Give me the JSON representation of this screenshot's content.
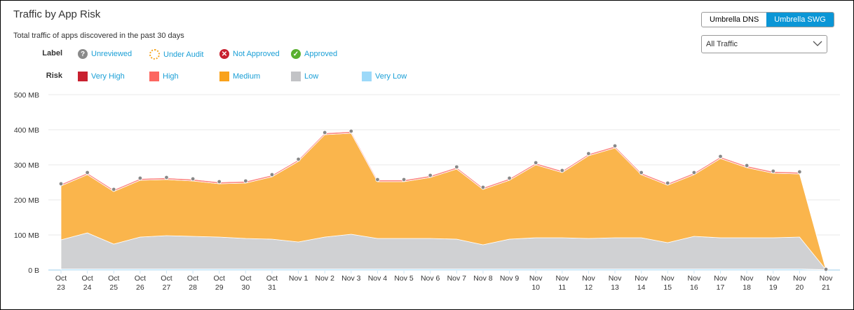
{
  "header": {
    "title": "Traffic by App Risk",
    "subtitle": "Total traffic of apps discovered in the past 30 days"
  },
  "toggle": {
    "options": [
      "Umbrella DNS",
      "Umbrella SWG"
    ],
    "selected": "Umbrella SWG"
  },
  "filter": {
    "value": "All Traffic"
  },
  "legend": {
    "label_heading": "Label",
    "labels": [
      {
        "label": "Unreviewed",
        "icon": "question-circle-icon",
        "color": "#8a8a8a"
      },
      {
        "label": "Under Audit",
        "icon": "dotted-circle-icon",
        "color": "#f5a623"
      },
      {
        "label": "Not Approved",
        "icon": "x-circle-icon",
        "color": "#c8202f"
      },
      {
        "label": "Approved",
        "icon": "check-circle-icon",
        "color": "#5ab030"
      }
    ],
    "risk_heading": "Risk",
    "risks": [
      {
        "label": "Very High",
        "color": "#c8202f"
      },
      {
        "label": "High",
        "color": "#fc6660"
      },
      {
        "label": "Medium",
        "color": "#f9a21b"
      },
      {
        "label": "Low",
        "color": "#c2c3c6"
      },
      {
        "label": "Very Low",
        "color": "#9cd9f9"
      }
    ]
  },
  "chart_data": {
    "type": "area",
    "stacked": true,
    "y_ticks": [
      "0 B",
      "100 MB",
      "200 MB",
      "300 MB",
      "400 MB",
      "500 MB"
    ],
    "ylim": [
      0,
      500
    ],
    "y_unit": "MB",
    "grid": true,
    "categories": [
      "Oct 23",
      "Oct 24",
      "Oct 25",
      "Oct 26",
      "Oct 27",
      "Oct 28",
      "Oct 29",
      "Oct 30",
      "Oct 31",
      "Nov 1",
      "Nov 2",
      "Nov 3",
      "Nov 4",
      "Nov 5",
      "Nov 6",
      "Nov 7",
      "Nov 8",
      "Nov 9",
      "Nov 10",
      "Nov 11",
      "Nov 12",
      "Nov 13",
      "Nov 14",
      "Nov 15",
      "Nov 16",
      "Nov 17",
      "Nov 18",
      "Nov 19",
      "Nov 20",
      "Nov 21"
    ],
    "series": [
      {
        "name": "Very Low",
        "color": "#9cd9f9",
        "values": [
          3,
          3,
          3,
          3,
          3,
          3,
          3,
          3,
          3,
          3,
          3,
          3,
          3,
          3,
          3,
          3,
          3,
          3,
          3,
          3,
          3,
          3,
          3,
          3,
          3,
          3,
          3,
          3,
          3,
          1
        ]
      },
      {
        "name": "Low",
        "color": "#d0d1d3",
        "values": [
          83,
          103,
          71,
          91,
          95,
          93,
          91,
          87,
          85,
          77,
          91,
          99,
          87,
          87,
          87,
          85,
          69,
          85,
          89,
          89,
          87,
          89,
          89,
          75,
          93,
          89,
          89,
          89,
          91,
          0
        ]
      },
      {
        "name": "Medium",
        "color": "#fab54c",
        "values": [
          154,
          166,
          150,
          162,
          160,
          158,
          152,
          158,
          178,
          230,
          292,
          288,
          162,
          162,
          174,
          200,
          158,
          168,
          208,
          186,
          236,
          256,
          180,
          164,
          176,
          226,
          200,
          184,
          180,
          0
        ]
      },
      {
        "name": "High",
        "color": "#fc8a85",
        "values": [
          5,
          5,
          5,
          5,
          5,
          5,
          5,
          5,
          5,
          5,
          5,
          5,
          5,
          5,
          5,
          5,
          5,
          5,
          5,
          5,
          5,
          5,
          5,
          5,
          5,
          5,
          5,
          5,
          5,
          1
        ]
      },
      {
        "name": "Very High",
        "color": "#c8202f",
        "values": [
          1,
          1,
          1,
          1,
          1,
          1,
          1,
          1,
          1,
          1,
          1,
          1,
          1,
          1,
          1,
          1,
          1,
          1,
          1,
          1,
          1,
          1,
          1,
          1,
          1,
          1,
          1,
          1,
          1,
          0
        ]
      }
    ]
  }
}
